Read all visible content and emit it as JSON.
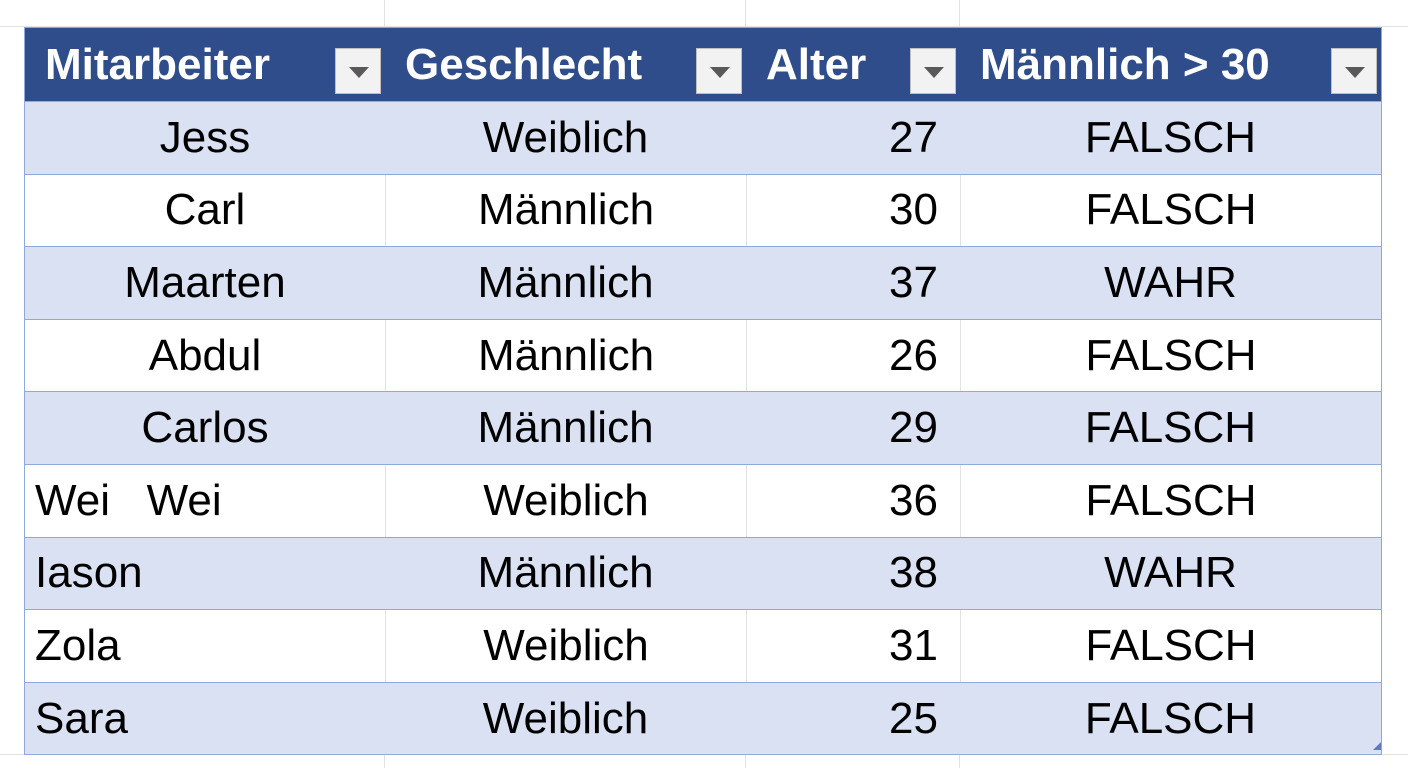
{
  "table": {
    "headers": [
      "Mitarbeiter",
      "Geschlecht",
      "Alter",
      "Männlich > 30"
    ],
    "rows": [
      [
        "Jess",
        "Weiblich",
        27,
        "FALSCH"
      ],
      [
        "Carl",
        "Männlich",
        30,
        "FALSCH"
      ],
      [
        "Maarten",
        "Männlich",
        37,
        "WAHR"
      ],
      [
        "Abdul",
        "Männlich",
        26,
        "FALSCH"
      ],
      [
        "Carlos",
        "Männlich",
        29,
        "FALSCH"
      ],
      [
        "Wei   Wei",
        "Weiblich",
        36,
        "FALSCH"
      ],
      [
        "Iason",
        "Männlich",
        38,
        "WAHR"
      ],
      [
        "Zola",
        "Weiblich",
        31,
        "FALSCH"
      ],
      [
        "Sara",
        "Weiblich",
        25,
        "FALSCH"
      ]
    ]
  }
}
